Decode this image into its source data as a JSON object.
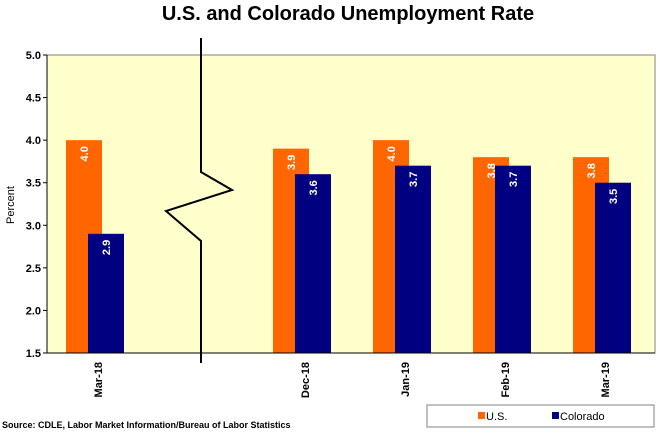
{
  "chart_data": {
    "type": "bar",
    "title": "U.S. and Colorado Unemployment Rate",
    "ylabel": "Percent",
    "xlabel": "",
    "ylim": [
      1.5,
      5.0
    ],
    "yticks": [
      "1.5",
      "2.0",
      "2.5",
      "3.0",
      "3.5",
      "4.0",
      "4.5",
      "5.0"
    ],
    "categories": [
      "Mar-18",
      "Dec-18",
      "Jan-19",
      "Feb-19",
      "Mar-19"
    ],
    "axis_break_after_category": 0,
    "series": [
      {
        "name": "U.S.",
        "color": "#ff6600",
        "values": [
          4.0,
          3.9,
          4.0,
          3.8,
          3.8
        ],
        "labels": [
          "4.0",
          "3.9",
          "4.0",
          "3.8",
          "3.8"
        ]
      },
      {
        "name": "Colorado",
        "color": "#000080",
        "values": [
          2.9,
          3.6,
          3.7,
          3.7,
          3.5
        ],
        "labels": [
          "2.9",
          "3.6",
          "3.7",
          "3.7",
          "3.5"
        ]
      }
    ],
    "plot_background": "#ffffcc",
    "grid": false,
    "legend_position": "bottom-right",
    "source": "Source: CDLE, Labor Market Information/Bureau of Labor Statistics"
  }
}
